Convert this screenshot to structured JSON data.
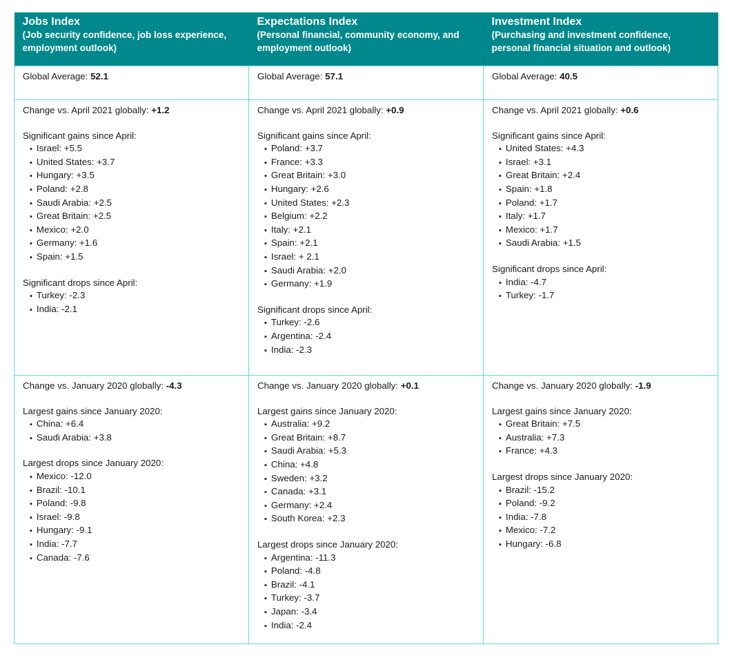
{
  "columns": [
    {
      "title": "Jobs Index",
      "subtitle": "(Job security confidence, job loss experience, employment outlook)",
      "global_label": "Global Average: ",
      "global_value": "52.1",
      "april_label": "Change vs. April 2021 globally: ",
      "april_value": "+1.2",
      "april_gains_label": "Significant gains since April:",
      "april_gains": [
        "Israel: +5.5",
        "United States: +3.7",
        "Hungary: +3.5",
        "Poland: +2.8",
        "Saudi Arabia: +2.5",
        "Great Britain: +2.5",
        "Mexico: +2.0",
        "Germany: +1.6",
        "Spain: +1.5"
      ],
      "april_drops_label": "Significant drops since April:",
      "april_drops": [
        "Turkey: -2.3",
        "India: -2.1"
      ],
      "jan_label": "Change vs. January 2020 globally: ",
      "jan_value": "-4.3",
      "jan_gains_label": "Largest gains since January 2020:",
      "jan_gains": [
        "China: +6.4",
        "Saudi Arabia: +3.8"
      ],
      "jan_drops_label": "Largest drops since January 2020:",
      "jan_drops": [
        "Mexico: -12.0",
        "Brazil: -10.1",
        "Poland: -9.8",
        "Israel: -9.8",
        "Hungary: -9.1",
        "India: -7.7",
        "Canada: -7.6"
      ]
    },
    {
      "title": "Expectations Index",
      "subtitle": "(Personal financial, community economy, and employment outlook)",
      "global_label": "Global Average: ",
      "global_value": "57.1",
      "april_label": "Change vs. April 2021 globally: ",
      "april_value": "+0.9",
      "april_gains_label": "Significant gains since April:",
      "april_gains": [
        "Poland: +3.7",
        "France: +3.3",
        "Great Britain: +3.0",
        "Hungary: +2.6",
        "United States: +2.3",
        "Belgium: +2.2",
        "Italy: +2.1",
        "Spain: +2.1",
        "Israel: + 2.1",
        "Saudi Arabia: +2.0",
        "Germany: +1.9"
      ],
      "april_drops_label": "Significant drops since April:",
      "april_drops": [
        "Turkey: -2.6",
        "Argentina: -2.4",
        "India: -2.3"
      ],
      "jan_label": "Change vs. January 2020 globally: ",
      "jan_value": "+0.1",
      "jan_gains_label": "Largest gains since January 2020:",
      "jan_gains": [
        "Australia: +9.2",
        "Great Britain: +8.7",
        "Saudi Arabia: +5.3",
        "China: +4.8",
        "Sweden: +3.2",
        "Canada: +3.1",
        "Germany: +2.4",
        "South Korea: +2.3"
      ],
      "jan_drops_label": "Largest drops since January 2020:",
      "jan_drops": [
        "Argentina: -11.3",
        "Poland: -4.8",
        "Brazil: -4.1",
        "Turkey: -3.7",
        "Japan: -3.4",
        "India: -2.4"
      ]
    },
    {
      "title": "Investment Index",
      "subtitle": "(Purchasing and investment confidence, personal financial situation and outlook)",
      "global_label": "Global Average: ",
      "global_value": "40.5",
      "april_label": "Change vs. April 2021 globally: ",
      "april_value": "+0.6",
      "april_gains_label": "Significant gains since April:",
      "april_gains": [
        "United States: +4.3",
        "Israel: +3.1",
        "Great Britain: +2.4",
        "Spain: +1.8",
        "Poland: +1.7",
        "Italy: +1.7",
        "Mexico: +1.7",
        "Saudi Arabia: +1.5"
      ],
      "april_drops_label": "Significant drops since April:",
      "april_drops": [
        "India: -4.7",
        "Turkey: -1.7"
      ],
      "jan_label": "Change vs. January 2020 globally: ",
      "jan_value": "-1.9",
      "jan_gains_label": "Largest gains since January 2020:",
      "jan_gains": [
        "Great Britain: +7.5",
        "Australia: +7.3",
        "France: +4.3"
      ],
      "jan_drops_label": "Largest drops since January 2020:",
      "jan_drops": [
        "Brazil: -15.2",
        "Poland: -9.2",
        "India: -7.8",
        "Mexico: -7.2",
        "Hungary: -6.8"
      ]
    }
  ],
  "colors": {
    "header_bg": "#00888c",
    "border": "#5fd6de"
  }
}
